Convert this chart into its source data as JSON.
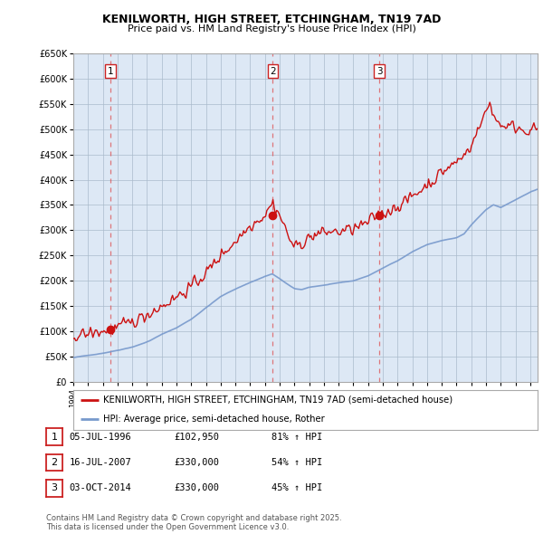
{
  "title_line1": "KENILWORTH, HIGH STREET, ETCHINGHAM, TN19 7AD",
  "title_line2": "Price paid vs. HM Land Registry's House Price Index (HPI)",
  "ylim": [
    0,
    650000
  ],
  "yticks": [
    0,
    50000,
    100000,
    150000,
    200000,
    250000,
    300000,
    350000,
    400000,
    450000,
    500000,
    550000,
    600000,
    650000
  ],
  "ytick_labels": [
    "£0",
    "£50K",
    "£100K",
    "£150K",
    "£200K",
    "£250K",
    "£300K",
    "£350K",
    "£400K",
    "£450K",
    "£500K",
    "£550K",
    "£600K",
    "£650K"
  ],
  "xlim_start": 1994.0,
  "xlim_end": 2025.5,
  "sale_dates": [
    1996.507,
    2007.537,
    2014.753
  ],
  "sale_prices": [
    102950,
    330000,
    330000
  ],
  "sale_labels": [
    "1",
    "2",
    "3"
  ],
  "vline_color": "#dd4444",
  "hpi_line_color": "#7799cc",
  "price_line_color": "#cc1111",
  "bg_chart_color": "#dde8f5",
  "background_color": "#ffffff",
  "grid_color": "#aabbcc",
  "legend_entries": [
    "KENILWORTH, HIGH STREET, ETCHINGHAM, TN19 7AD (semi-detached house)",
    "HPI: Average price, semi-detached house, Rother"
  ],
  "table_entries": [
    {
      "num": "1",
      "date": "05-JUL-1996",
      "price": "£102,950",
      "hpi": "81% ↑ HPI"
    },
    {
      "num": "2",
      "date": "16-JUL-2007",
      "price": "£330,000",
      "hpi": "54% ↑ HPI"
    },
    {
      "num": "3",
      "date": "03-OCT-2014",
      "price": "£330,000",
      "hpi": "45% ↑ HPI"
    }
  ],
  "footnote": "Contains HM Land Registry data © Crown copyright and database right 2025.\nThis data is licensed under the Open Government Licence v3.0.",
  "xtick_years": [
    1994,
    1995,
    1996,
    1997,
    1998,
    1999,
    2000,
    2001,
    2002,
    2003,
    2004,
    2005,
    2006,
    2007,
    2008,
    2009,
    2010,
    2011,
    2012,
    2013,
    2014,
    2015,
    2016,
    2017,
    2018,
    2019,
    2020,
    2021,
    2022,
    2023,
    2024,
    2025
  ]
}
